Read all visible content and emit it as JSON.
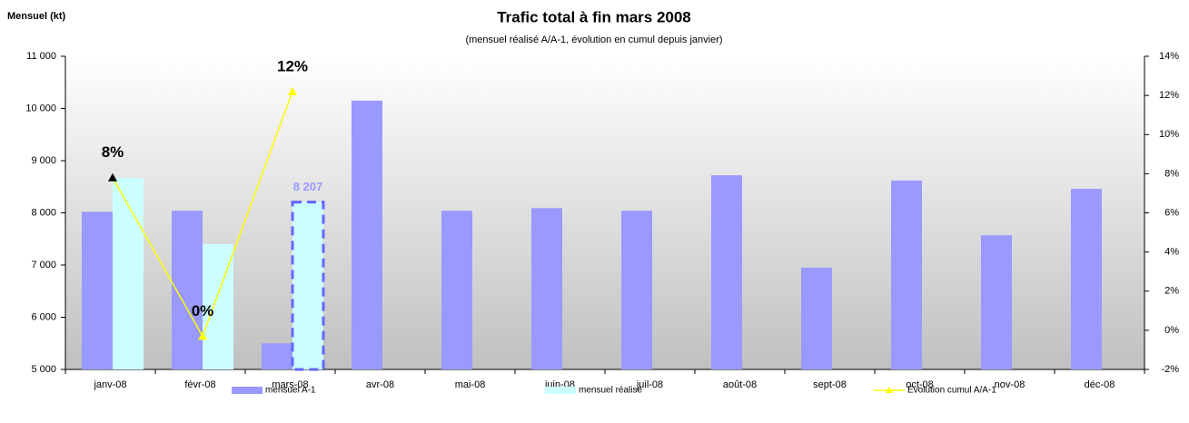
{
  "chart_data": {
    "type": "bar",
    "title": "Trafic total à fin mars 2008",
    "subtitle": "(mensuel réalisé A/A-1, évolution en cumul depuis janvier)",
    "y_label": "Mensuel (kt)",
    "categories": [
      "janv-08",
      "févr-08",
      "mars-08",
      "avr-08",
      "mai-08",
      "juin-08",
      "juil-08",
      "août-08",
      "sept-08",
      "oct-08",
      "nov-08",
      "déc-08"
    ],
    "series": [
      {
        "name": "mensuel A-1",
        "color": "#9999ff",
        "values": [
          8020,
          8040,
          5500,
          10150,
          8040,
          8090,
          8040,
          8720,
          6950,
          8620,
          7570,
          8460
        ]
      },
      {
        "name": "mensuel réalisé",
        "color": "#ccffff",
        "values": [
          8670,
          7400,
          8207,
          null,
          null,
          null,
          null,
          null,
          null,
          null,
          null,
          null
        ],
        "value_labels": [
          null,
          null,
          "8 207",
          null,
          null,
          null,
          null,
          null,
          null,
          null,
          null,
          null
        ],
        "label_color": "#9999ff"
      },
      {
        "name": "Evolution cumul A/A-1",
        "type": "line",
        "axis": "y2",
        "color": "#ffff00",
        "values": [
          7.8,
          -0.3,
          12.2,
          null,
          null,
          null,
          null,
          null,
          null,
          null,
          null,
          null
        ],
        "value_labels": [
          "8%",
          "0%",
          "12%",
          null,
          null,
          null,
          null,
          null,
          null,
          null,
          null,
          null
        ],
        "marker_colors": [
          "#000000",
          "#ffff00",
          "#ffff00",
          null,
          null,
          null,
          null,
          null,
          null,
          null,
          null,
          null
        ]
      }
    ],
    "ylim": [
      5000,
      11000
    ],
    "yticks": [
      {
        "value": 5000,
        "label": "5 000"
      },
      {
        "value": 6000,
        "label": "6 000"
      },
      {
        "value": 7000,
        "label": "7 000"
      },
      {
        "value": 8000,
        "label": "8 000"
      },
      {
        "value": 9000,
        "label": "9 000"
      },
      {
        "value": 10000,
        "label": "10 000"
      },
      {
        "value": 11000,
        "label": "11 000"
      }
    ],
    "y2lim": [
      -2,
      14
    ],
    "y2ticks": [
      {
        "value": -2,
        "label": "-2%"
      },
      {
        "value": 0,
        "label": "0%"
      },
      {
        "value": 2,
        "label": "2%"
      },
      {
        "value": 4,
        "label": "4%"
      },
      {
        "value": 6,
        "label": "6%"
      },
      {
        "value": 8,
        "label": "8%"
      },
      {
        "value": 10,
        "label": "10%"
      },
      {
        "value": 12,
        "label": "12%"
      },
      {
        "value": 14,
        "label": "14%"
      }
    ],
    "legend": "bottom"
  }
}
